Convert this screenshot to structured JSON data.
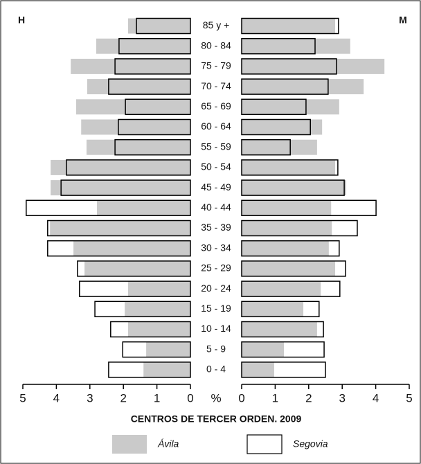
{
  "chart_data": {
    "type": "pyramid",
    "title": "CENTROS DE TERCER ORDEN. 2009",
    "left_label": "H",
    "right_label": "M",
    "axis_label": "%",
    "categories": [
      "85 y +",
      "80 - 84",
      "75 - 79",
      "70 - 74",
      "65 - 69",
      "60 - 64",
      "55 - 59",
      "50 - 54",
      "45 - 49",
      "40 - 44",
      "35 - 39",
      "30 - 34",
      "25 - 29",
      "20 - 24",
      "15 - 19",
      "10 - 14",
      "5 - 9",
      "0 - 4"
    ],
    "xlim": [
      0,
      5
    ],
    "xticks": [
      0,
      1,
      2,
      3,
      4,
      5
    ],
    "series": [
      {
        "name": "Ávila",
        "color": "#cacaca",
        "filled": true,
        "values_h": [
          1.86,
          2.81,
          3.57,
          3.08,
          3.41,
          3.26,
          3.1,
          4.17,
          4.17,
          2.79,
          4.19,
          3.49,
          3.16,
          1.86,
          1.96,
          1.86,
          1.32,
          1.4
        ],
        "values_m": [
          2.79,
          3.24,
          4.26,
          3.64,
          2.91,
          2.4,
          2.25,
          2.79,
          3.12,
          2.67,
          2.69,
          2.6,
          2.79,
          2.36,
          1.84,
          2.25,
          1.26,
          0.97
        ]
      },
      {
        "name": "Segovia",
        "color": "#000000",
        "filled": false,
        "values_h": [
          1.61,
          2.13,
          2.25,
          2.44,
          1.94,
          2.15,
          2.25,
          3.7,
          3.86,
          4.9,
          4.26,
          4.26,
          3.37,
          3.31,
          2.85,
          2.38,
          2.02,
          2.44
        ],
        "values_m": [
          2.89,
          2.19,
          2.83,
          2.58,
          1.92,
          2.05,
          1.45,
          2.87,
          3.06,
          4.01,
          3.45,
          2.91,
          3.1,
          2.93,
          2.31,
          2.44,
          2.46,
          2.5
        ]
      }
    ]
  }
}
